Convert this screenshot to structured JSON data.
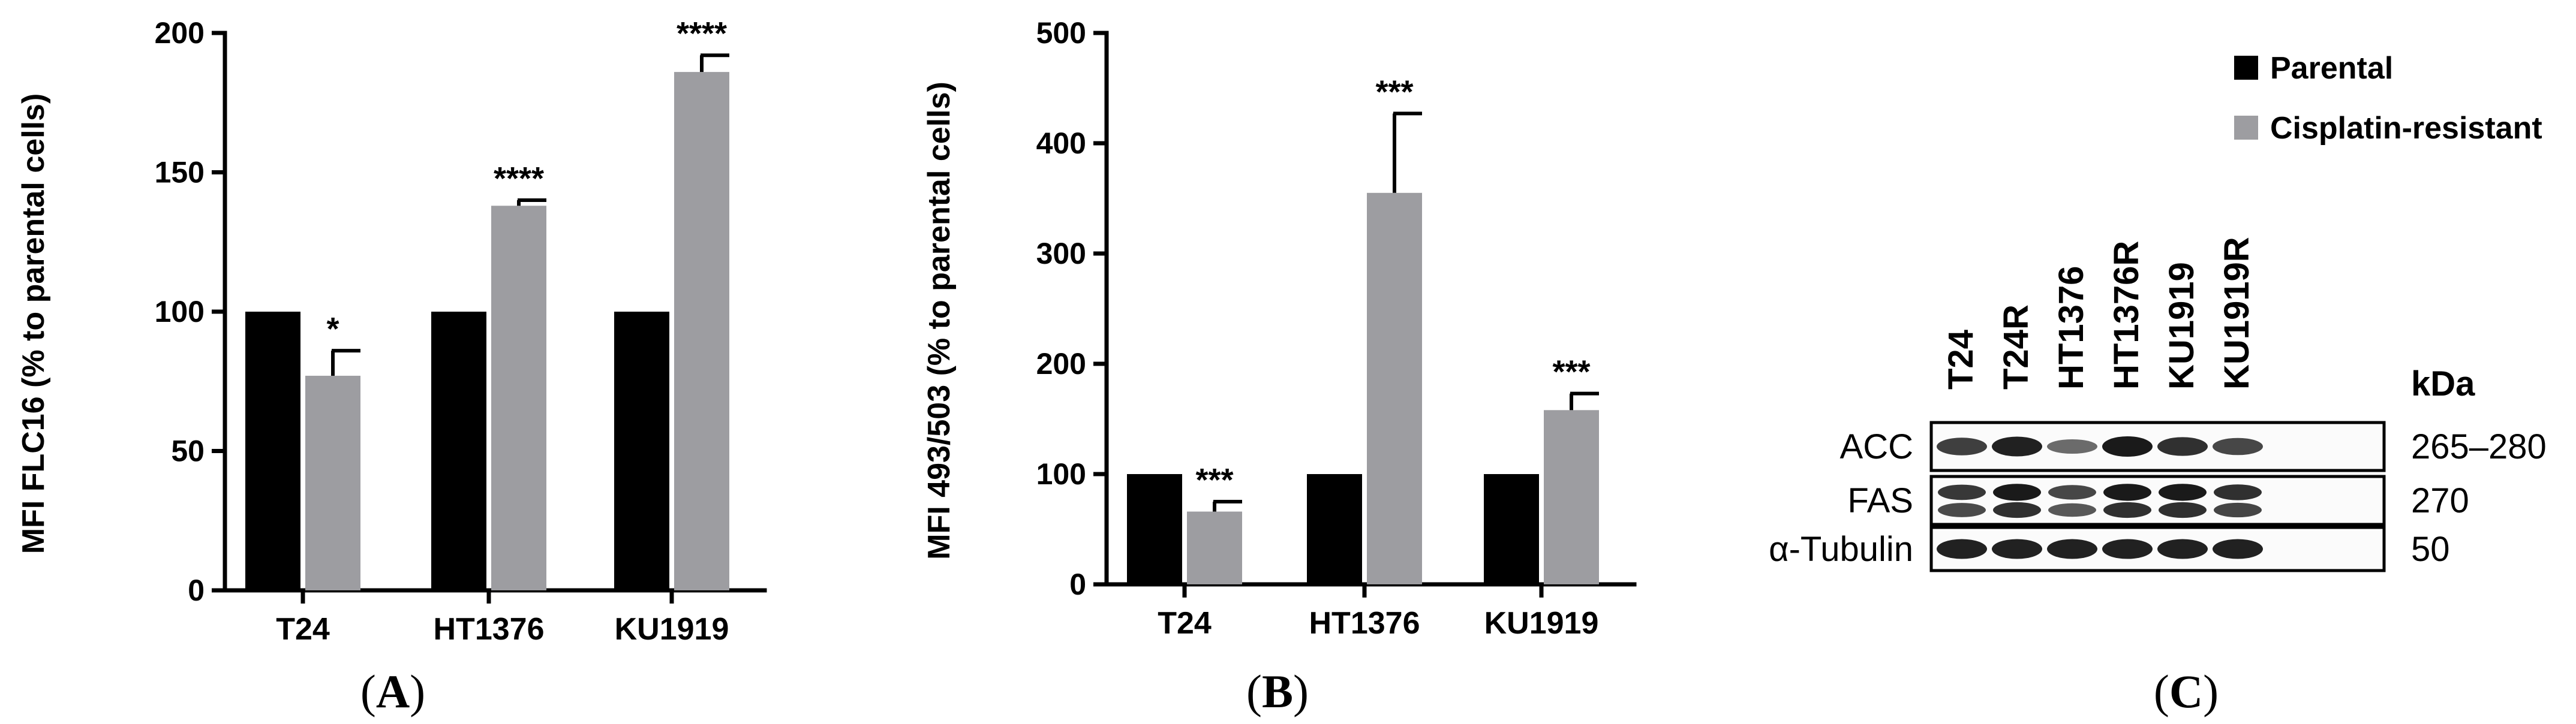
{
  "colors": {
    "parental": "#000000",
    "resistant": "#9d9da1",
    "band": "#1a1a1a"
  },
  "legend": [
    {
      "label": "Parental",
      "color": "#000000"
    },
    {
      "label": "Cisplatin-resistant",
      "color": "#9d9da1"
    }
  ],
  "chart_data": [
    {
      "type": "bar",
      "panel_label": "A",
      "title": "",
      "xlabel": "",
      "ylabel": "MFI FLC16 (% to parental cells)",
      "ylim": [
        0,
        200
      ],
      "yticks": [
        0,
        50,
        100,
        150,
        200
      ],
      "categories": [
        "T24",
        "HT1376",
        "KU1919"
      ],
      "series": [
        {
          "name": "Parental",
          "values": [
            100,
            100,
            100
          ],
          "errors": [
            0,
            0,
            0
          ]
        },
        {
          "name": "Cisplatin-resistant",
          "values": [
            77,
            138,
            186
          ],
          "errors": [
            9,
            2,
            6
          ]
        }
      ],
      "annotations": [
        "*",
        "****",
        "****"
      ],
      "grid": false
    },
    {
      "type": "bar",
      "panel_label": "B",
      "title": "",
      "xlabel": "",
      "ylabel": "MFI 493/503 (% to parental cells)",
      "ylim": [
        0,
        500
      ],
      "yticks": [
        0,
        100,
        200,
        300,
        400,
        500
      ],
      "categories": [
        "T24",
        "HT1376",
        "KU1919"
      ],
      "series": [
        {
          "name": "Parental",
          "values": [
            100,
            100,
            100
          ],
          "errors": [
            0,
            0,
            0
          ]
        },
        {
          "name": "Cisplatin-resistant",
          "values": [
            66,
            355,
            158
          ],
          "errors": [
            9,
            72,
            15
          ]
        }
      ],
      "annotations": [
        "***",
        "***",
        "***"
      ],
      "grid": false
    }
  ],
  "blot": {
    "panel_label": "C",
    "lanes": [
      "T24",
      "T24R",
      "HT1376",
      "HT1376R",
      "KU1919",
      "KU1919R"
    ],
    "unit_header": "kDa",
    "rows": [
      {
        "protein": "ACC",
        "kda": "265–280",
        "intensity": [
          0.75,
          0.95,
          0.45,
          1.0,
          0.85,
          0.7
        ]
      },
      {
        "protein": "FAS",
        "kda": "270",
        "intensity": [
          0.8,
          1.0,
          0.7,
          1.0,
          1.0,
          0.85
        ]
      },
      {
        "protein": "α-Tubulin",
        "kda": "50",
        "intensity": [
          0.95,
          0.95,
          0.95,
          0.95,
          0.95,
          0.95
        ]
      }
    ]
  }
}
